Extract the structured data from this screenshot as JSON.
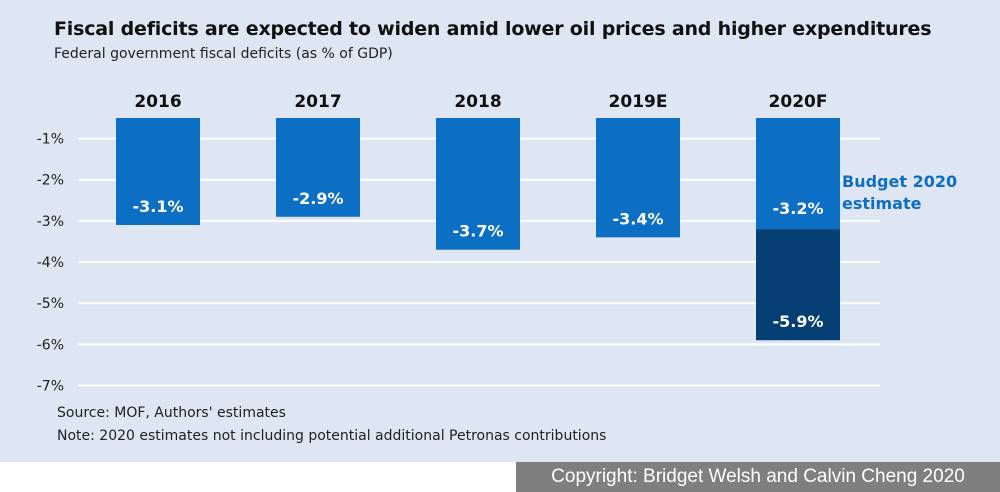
{
  "title": "Fiscal deficits are expected to widen amid lower oil prices and higher expenditures",
  "subtitle": "Federal government fiscal deficits (as % of GDP)",
  "source": "Source: MOF, Authors' estimates",
  "note": "Note: 2020 estimates not including potential additional Petronas contributions",
  "copyright": "Copyright: Bridget Welsh and Calvin Cheng 2020",
  "colors": {
    "bar": "#0d6fc4",
    "budget_segment": "#0d6fc4",
    "forecast_segment": "#053f73",
    "annotation": "#0d6fc4",
    "gridline": "#ffffff",
    "background": "#dde6f2"
  },
  "chart_data": {
    "type": "bar",
    "title": "Fiscal deficits are expected to widen amid lower oil prices and higher expenditures",
    "subtitle": "Federal government fiscal deficits (as % of GDP)",
    "categories": [
      "2016",
      "2017",
      "2018",
      "2019E",
      "2020F"
    ],
    "values": [
      -3.1,
      -2.9,
      -3.7,
      -3.4,
      -5.9
    ],
    "labels": [
      "-3.1%",
      "-2.9%",
      "-3.7%",
      "-3.4%",
      "-5.9%"
    ],
    "budget_2020": {
      "category": "2020F",
      "value": -3.2,
      "label": "-3.2%"
    },
    "annotation": [
      "Budget 2020",
      "estimate"
    ],
    "y_ticks": [
      -1,
      -2,
      -3,
      -4,
      -5,
      -6,
      -7
    ],
    "y_tick_labels": [
      "-1%",
      "-2%",
      "-3%",
      "-4%",
      "-5%",
      "-6%",
      "-7%"
    ],
    "ylim": [
      -7,
      -0.5
    ],
    "x_axis_position": "top",
    "grid": true,
    "xlabel": "",
    "ylabel": ""
  }
}
